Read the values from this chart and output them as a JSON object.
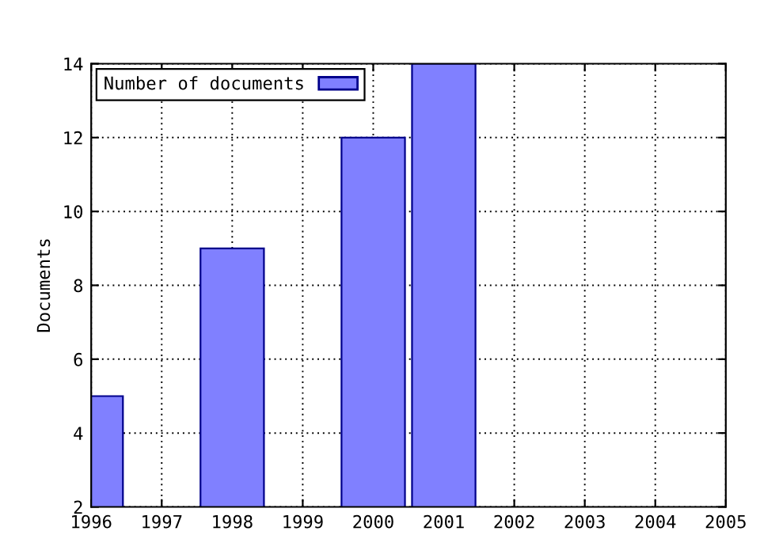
{
  "chart_data": {
    "type": "bar",
    "ylabel": "Documents",
    "x": [
      1996,
      1998,
      2000,
      2001
    ],
    "series": [
      {
        "name": "Number of documents",
        "color": "#8080ff",
        "values": [
          5,
          9,
          12,
          14
        ]
      }
    ],
    "xlim": [
      1996,
      2005
    ],
    "xticks": [
      1996,
      1997,
      1998,
      1999,
      2000,
      2001,
      2002,
      2003,
      2004,
      2005
    ],
    "ylim": [
      2,
      14
    ],
    "yticks": [
      2,
      4,
      6,
      8,
      10,
      12,
      14
    ],
    "grid": true,
    "legend": "top left"
  }
}
